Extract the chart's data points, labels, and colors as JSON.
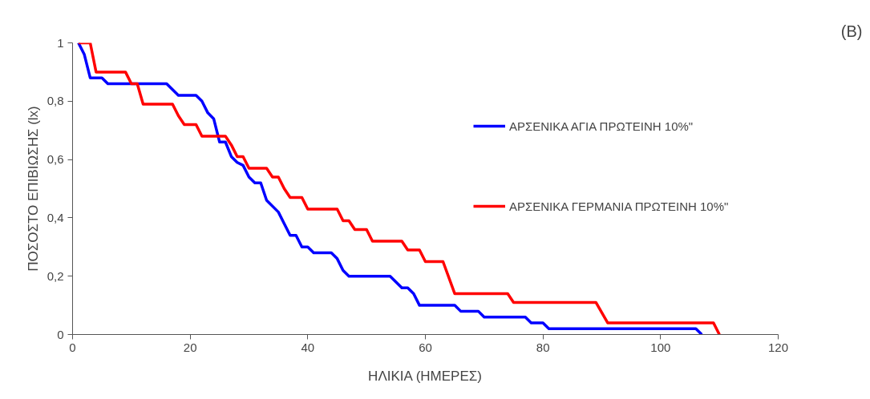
{
  "chart_data": {
    "type": "line",
    "xlabel": "ΗΛΙΚΙΑ (ΗΜΕΡΕΣ)",
    "ylabel": "ΠΟΣΟΣΤΟ ΕΠΙΒΙΩΣΗΣ (lx)",
    "annotations": [
      "(B)"
    ],
    "xlim": [
      0,
      120
    ],
    "xticks": [
      0,
      20,
      40,
      60,
      80,
      100,
      120
    ],
    "ylim": [
      0,
      1
    ],
    "yticks": [
      0,
      {
        "value": 0.2,
        "label": "0,2"
      },
      {
        "value": 0.4,
        "label": "0,4"
      },
      {
        "value": 0.6,
        "label": "0,6"
      },
      {
        "value": 0.8,
        "label": "0,8"
      },
      1
    ],
    "grid": false,
    "legend": "right",
    "marker": "none",
    "line_style": "solid",
    "series": [
      {
        "name": "ΑΡΣΕΝΙΚΑ ΑΓΙΑ ΠΡΩΤΕΙΝΗ 10%\"",
        "color": "#0000ff",
        "x": [
          1,
          2,
          3,
          4,
          5,
          6,
          16,
          18,
          21,
          22,
          23,
          24,
          25,
          26,
          27,
          28,
          29,
          30,
          31,
          32,
          33,
          35,
          36,
          37,
          38,
          39,
          40,
          41,
          44,
          45,
          46,
          47,
          54,
          55,
          56,
          57,
          58,
          59,
          65,
          66,
          69,
          70,
          77,
          78,
          80,
          81,
          106,
          107
        ],
        "values": [
          1,
          0.96,
          0.88,
          0.88,
          0.88,
          0.86,
          0.86,
          0.82,
          0.82,
          0.8,
          0.76,
          0.74,
          0.66,
          0.66,
          0.61,
          0.59,
          0.58,
          0.54,
          0.52,
          0.52,
          0.46,
          0.42,
          0.38,
          0.34,
          0.34,
          0.3,
          0.3,
          0.28,
          0.28,
          0.26,
          0.22,
          0.2,
          0.2,
          0.18,
          0.16,
          0.16,
          0.14,
          0.1,
          0.1,
          0.08,
          0.08,
          0.06,
          0.06,
          0.04,
          0.04,
          0.02,
          0.02,
          0
        ]
      },
      {
        "name": "ΑΡΣΕΝΙΚΑ ΓΕΡΜΑΝΙΑ ΠΡΩΤΕΙΝΗ 10%\"",
        "color": "#ff0000",
        "x": [
          1,
          3,
          4,
          9,
          10,
          11,
          12,
          17,
          18,
          19,
          21,
          22,
          26,
          27,
          28,
          29,
          30,
          33,
          34,
          35,
          36,
          37,
          39,
          40,
          45,
          46,
          47,
          48,
          50,
          51,
          56,
          57,
          59,
          60,
          63,
          65,
          74,
          75,
          89,
          91,
          109,
          110
        ],
        "values": [
          1,
          1,
          0.9,
          0.9,
          0.86,
          0.86,
          0.79,
          0.79,
          0.75,
          0.72,
          0.72,
          0.68,
          0.68,
          0.65,
          0.61,
          0.61,
          0.57,
          0.57,
          0.54,
          0.54,
          0.5,
          0.47,
          0.47,
          0.43,
          0.43,
          0.39,
          0.39,
          0.36,
          0.36,
          0.32,
          0.32,
          0.29,
          0.29,
          0.25,
          0.25,
          0.14,
          0.14,
          0.11,
          0.11,
          0.04,
          0.04,
          0
        ]
      }
    ]
  }
}
